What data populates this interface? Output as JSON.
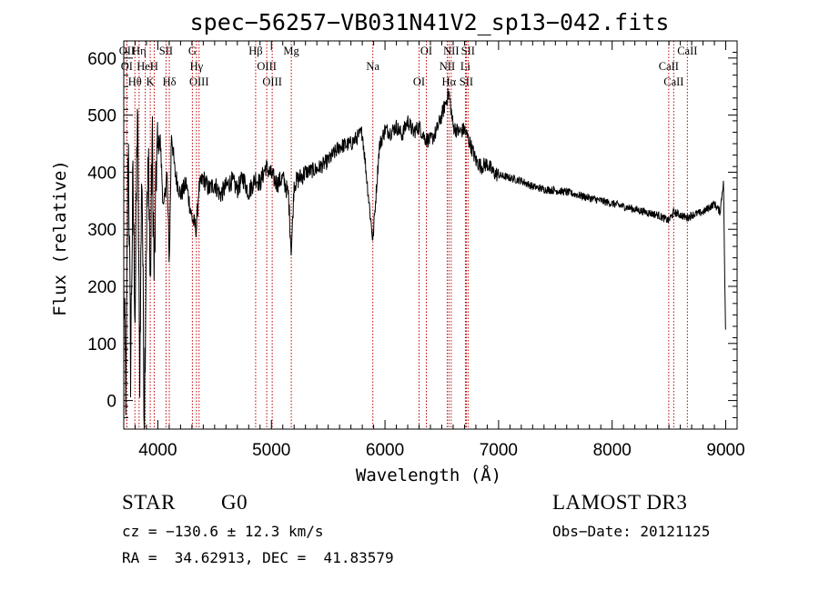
{
  "chart_data": {
    "type": "line",
    "title": "spec−56257−VB031N41V2_sp13−042.fits",
    "xlabel": "Wavelength (Å)",
    "ylabel": "Flux (relative)",
    "xlim": [
      3700,
      9100
    ],
    "ylim": [
      -50,
      630
    ],
    "xticks": [
      4000,
      5000,
      6000,
      7000,
      8000,
      9000
    ],
    "yticks": [
      0,
      100,
      200,
      300,
      400,
      500,
      600
    ],
    "grid": false,
    "series": [
      {
        "name": "flux",
        "x": [
          3700,
          3720,
          3740,
          3760,
          3780,
          3800,
          3820,
          3840,
          3860,
          3880,
          3900,
          3920,
          3933,
          3950,
          3968,
          3990,
          4020,
          4050,
          4080,
          4101,
          4120,
          4150,
          4200,
          4250,
          4300,
          4340,
          4360,
          4400,
          4450,
          4500,
          4550,
          4600,
          4650,
          4700,
          4750,
          4800,
          4861,
          4900,
          4950,
          5000,
          5050,
          5100,
          5150,
          5175,
          5200,
          5250,
          5300,
          5400,
          5500,
          5600,
          5700,
          5800,
          5893,
          5950,
          6000,
          6050,
          6100,
          6150,
          6200,
          6250,
          6300,
          6350,
          6400,
          6450,
          6500,
          6563,
          6600,
          6650,
          6700,
          6750,
          6800,
          6850,
          6900,
          6950,
          7000,
          7100,
          7200,
          7300,
          7400,
          7500,
          7600,
          7700,
          7800,
          7900,
          8000,
          8100,
          8200,
          8300,
          8400,
          8498,
          8542,
          8600,
          8662,
          8700,
          8800,
          8900,
          8950,
          8980,
          9000
        ],
        "values": [
          200,
          0,
          480,
          60,
          380,
          150,
          520,
          40,
          430,
          -30,
          300,
          420,
          180,
          470,
          210,
          430,
          460,
          330,
          400,
          240,
          470,
          400,
          360,
          380,
          320,
          300,
          370,
          390,
          370,
          380,
          360,
          375,
          385,
          370,
          390,
          365,
          390,
          380,
          410,
          395,
          380,
          390,
          360,
          260,
          380,
          390,
          400,
          405,
          420,
          445,
          450,
          470,
          280,
          445,
          475,
          470,
          480,
          465,
          490,
          470,
          480,
          460,
          455,
          470,
          500,
          540,
          480,
          470,
          475,
          450,
          420,
          410,
          415,
          400,
          395,
          390,
          385,
          375,
          370,
          368,
          365,
          360,
          355,
          350,
          345,
          340,
          335,
          330,
          325,
          315,
          330,
          325,
          320,
          325,
          330,
          345,
          330,
          385,
          90
        ]
      }
    ],
    "lines": [
      {
        "label": "OII",
        "wavelength": 3727
      },
      {
        "label": "OI",
        "wavelength": 3727
      },
      {
        "label": "Hθ",
        "wavelength": 3798
      },
      {
        "label": "Hη",
        "wavelength": 3835
      },
      {
        "label": "HeI",
        "wavelength": 3889
      },
      {
        "label": "K",
        "wavelength": 3933
      },
      {
        "label": "SII",
        "wavelength": 4072
      },
      {
        "label": "H",
        "wavelength": 3968
      },
      {
        "label": "Hδ",
        "wavelength": 4101
      },
      {
        "label": "G",
        "wavelength": 4304
      },
      {
        "label": "Hγ",
        "wavelength": 4340
      },
      {
        "label": "OIII",
        "wavelength": 4363
      },
      {
        "label": "Hβ",
        "wavelength": 4861
      },
      {
        "label": "OIII",
        "wavelength": 4959
      },
      {
        "label": "OIII",
        "wavelength": 5007
      },
      {
        "label": "Mg",
        "wavelength": 5175
      },
      {
        "label": "Na",
        "wavelength": 5893
      },
      {
        "label": "OI",
        "wavelength": 6300
      },
      {
        "label": "OI",
        "wavelength": 6364
      },
      {
        "label": "NII",
        "wavelength": 6548
      },
      {
        "label": "Hα",
        "wavelength": 6563
      },
      {
        "label": "NII",
        "wavelength": 6583
      },
      {
        "label": "Li",
        "wavelength": 6708
      },
      {
        "label": "SII",
        "wavelength": 6716
      },
      {
        "label": "SII",
        "wavelength": 6731
      },
      {
        "label": "CaII",
        "wavelength": 8498
      },
      {
        "label": "CaII",
        "wavelength": 8542
      },
      {
        "label": "CaII",
        "wavelength": 8662
      }
    ]
  },
  "info": {
    "class": "STAR",
    "subclass": "G0",
    "survey": "LAMOST DR3",
    "cz": "cz = −130.6 ± 12.3 km/s",
    "obsdate": "Obs−Date: 20121125",
    "radec": "RA =  34.62913, DEC =  41.83579"
  }
}
